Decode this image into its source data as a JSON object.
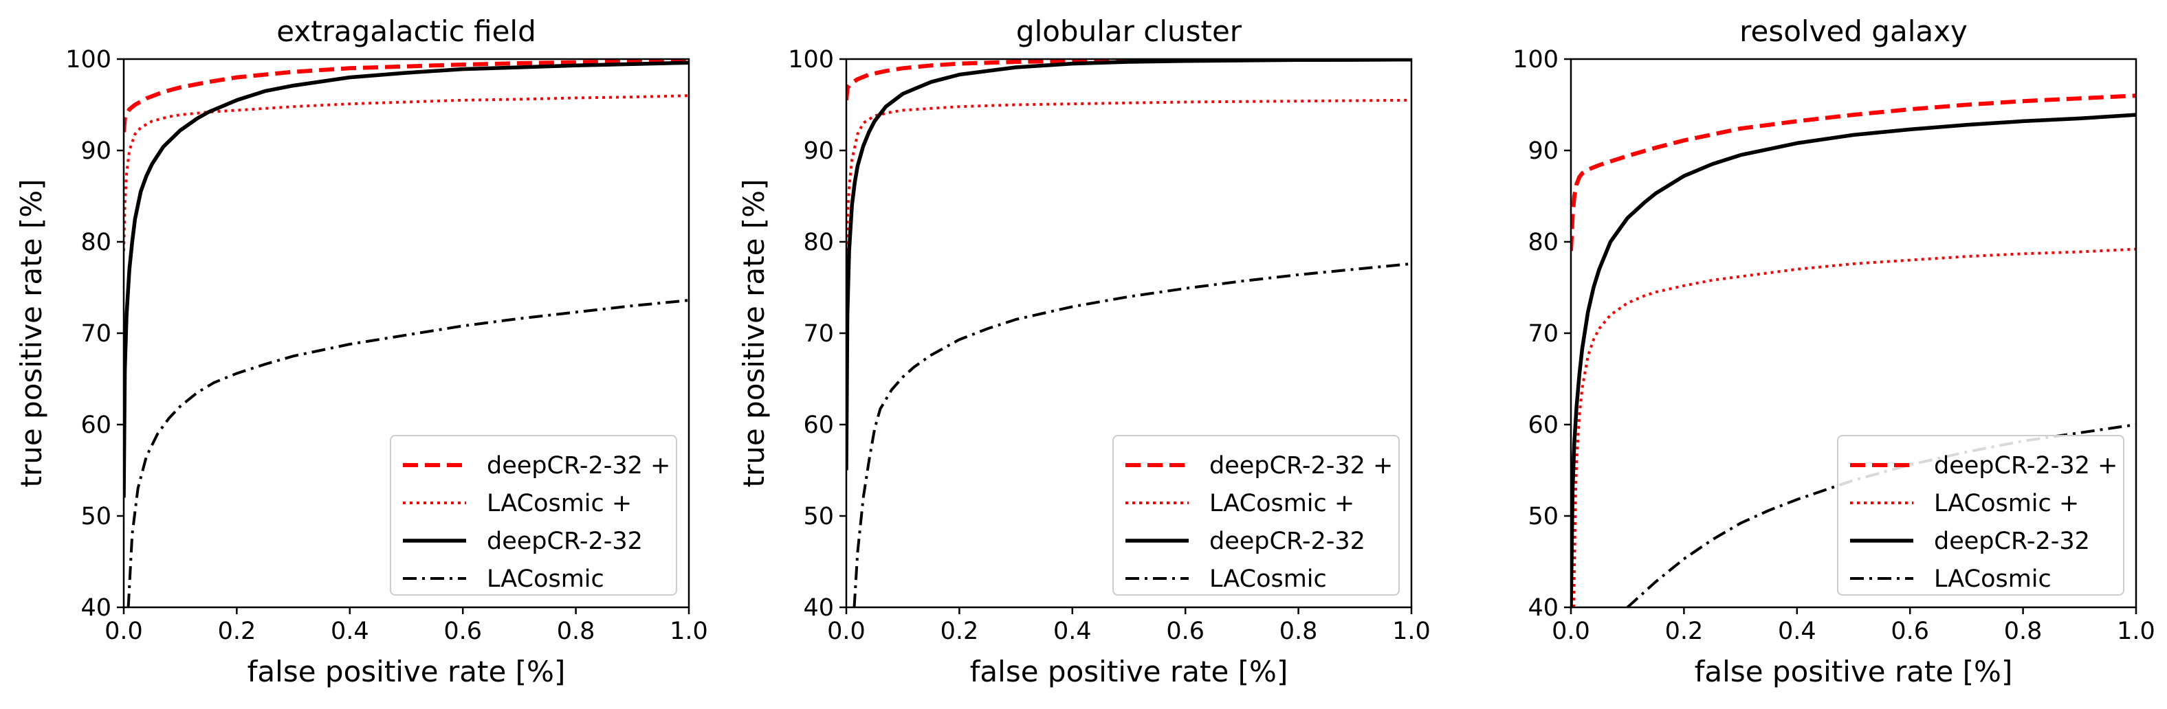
{
  "chart_data": [
    {
      "type": "line",
      "title": "extragalactic field",
      "xlabel": "false positive rate [%]",
      "ylabel": "true positive rate [%]",
      "xlim": [
        0.0,
        1.0
      ],
      "ylim": [
        40,
        100
      ],
      "xticks": [
        "0.0",
        "0.2",
        "0.4",
        "0.6",
        "0.8",
        "1.0"
      ],
      "yticks": [
        "40",
        "50",
        "60",
        "70",
        "80",
        "90",
        "100"
      ],
      "legend_position": "lower-right",
      "series": [
        {
          "name": "deepCR-2-32 +",
          "color": "#ff0000",
          "style": "dashed",
          "x": [
            0,
            0.002,
            0.005,
            0.01,
            0.02,
            0.04,
            0.07,
            0.1,
            0.15,
            0.2,
            0.3,
            0.4,
            0.5,
            0.6,
            0.7,
            0.8,
            0.9,
            1.0
          ],
          "y": [
            92,
            93.5,
            94.0,
            94.5,
            95.0,
            95.7,
            96.4,
            96.9,
            97.5,
            98.0,
            98.6,
            99.0,
            99.2,
            99.4,
            99.55,
            99.65,
            99.75,
            99.85
          ]
        },
        {
          "name": "LACosmic +",
          "color": "#ff0000",
          "style": "dotted",
          "x": [
            0,
            0.002,
            0.005,
            0.01,
            0.02,
            0.03,
            0.05,
            0.08,
            0.1,
            0.15,
            0.2,
            0.3,
            0.4,
            0.5,
            0.6,
            0.7,
            0.8,
            0.9,
            1.0
          ],
          "y": [
            79,
            84,
            87.5,
            90,
            91.8,
            92.5,
            93.2,
            93.7,
            93.9,
            94.2,
            94.4,
            94.8,
            95.1,
            95.3,
            95.5,
            95.6,
            95.75,
            95.85,
            96.0
          ]
        },
        {
          "name": "deepCR-2-32",
          "color": "#000000",
          "style": "solid",
          "x": [
            0,
            0.002,
            0.005,
            0.01,
            0.015,
            0.02,
            0.03,
            0.04,
            0.05,
            0.07,
            0.1,
            0.13,
            0.15,
            0.2,
            0.25,
            0.3,
            0.4,
            0.5,
            0.6,
            0.7,
            0.8,
            0.9,
            1.0
          ],
          "y": [
            52,
            66,
            72,
            77,
            80,
            82.5,
            85.5,
            87.2,
            88.5,
            90.4,
            92.2,
            93.5,
            94.2,
            95.5,
            96.5,
            97.1,
            98.0,
            98.5,
            98.9,
            99.1,
            99.3,
            99.45,
            99.6
          ]
        },
        {
          "name": "LACosmic",
          "color": "#000000",
          "style": "dashdot",
          "x": [
            0.008,
            0.015,
            0.025,
            0.04,
            0.06,
            0.08,
            0.1,
            0.13,
            0.16,
            0.2,
            0.25,
            0.3,
            0.4,
            0.5,
            0.6,
            0.7,
            0.8,
            0.9,
            1.0
          ],
          "y": [
            40,
            48,
            53,
            56.5,
            59,
            60.7,
            62,
            63.5,
            64.6,
            65.6,
            66.6,
            67.5,
            68.8,
            69.8,
            70.8,
            71.6,
            72.3,
            73.0,
            73.6
          ]
        }
      ]
    },
    {
      "type": "line",
      "title": "globular cluster",
      "xlabel": "false positive rate [%]",
      "ylabel": "true positive rate [%]",
      "xlim": [
        0.0,
        1.0
      ],
      "ylim": [
        40,
        100
      ],
      "xticks": [
        "0.0",
        "0.2",
        "0.4",
        "0.6",
        "0.8",
        "1.0"
      ],
      "yticks": [
        "40",
        "50",
        "60",
        "70",
        "80",
        "90",
        "100"
      ],
      "legend_position": "lower-right",
      "series": [
        {
          "name": "deepCR-2-32 +",
          "color": "#ff0000",
          "style": "dashed",
          "x": [
            0,
            0.002,
            0.005,
            0.01,
            0.02,
            0.04,
            0.07,
            0.1,
            0.15,
            0.2,
            0.3,
            0.4,
            0.5,
            0.6,
            0.7,
            0.8,
            0.9,
            1.0
          ],
          "y": [
            95.5,
            96.8,
            97.1,
            97.4,
            97.8,
            98.3,
            98.7,
            99.0,
            99.3,
            99.5,
            99.7,
            99.8,
            99.85,
            99.9,
            99.92,
            99.94,
            99.96,
            99.97
          ]
        },
        {
          "name": "LACosmic +",
          "color": "#ff0000",
          "style": "dotted",
          "x": [
            0,
            0.002,
            0.005,
            0.01,
            0.02,
            0.03,
            0.05,
            0.08,
            0.1,
            0.15,
            0.2,
            0.3,
            0.4,
            0.5,
            0.6,
            0.7,
            0.8,
            0.9,
            1.0
          ],
          "y": [
            76,
            82,
            86,
            89,
            91.8,
            93,
            93.8,
            94.2,
            94.4,
            94.6,
            94.8,
            95.0,
            95.1,
            95.2,
            95.3,
            95.35,
            95.4,
            95.45,
            95.5
          ]
        },
        {
          "name": "deepCR-2-32",
          "color": "#000000",
          "style": "solid",
          "x": [
            0,
            0.002,
            0.005,
            0.01,
            0.015,
            0.02,
            0.03,
            0.04,
            0.05,
            0.07,
            0.1,
            0.15,
            0.2,
            0.3,
            0.4,
            0.5,
            0.6,
            0.7,
            0.8,
            0.9,
            1.0
          ],
          "y": [
            55,
            72,
            79,
            84,
            86.5,
            88.3,
            90.5,
            92,
            93.2,
            94.8,
            96.2,
            97.5,
            98.3,
            99.1,
            99.5,
            99.7,
            99.8,
            99.85,
            99.9,
            99.92,
            99.95
          ]
        },
        {
          "name": "LACosmic",
          "color": "#000000",
          "style": "dashdot",
          "x": [
            0.014,
            0.02,
            0.03,
            0.04,
            0.05,
            0.06,
            0.08,
            0.1,
            0.12,
            0.15,
            0.2,
            0.25,
            0.3,
            0.4,
            0.5,
            0.6,
            0.7,
            0.8,
            0.9,
            1.0
          ],
          "y": [
            40,
            46,
            52,
            56,
            59.5,
            61.7,
            63.8,
            65.2,
            66.3,
            67.6,
            69.3,
            70.5,
            71.5,
            72.9,
            74.0,
            74.9,
            75.7,
            76.4,
            77.0,
            77.6
          ]
        }
      ]
    },
    {
      "type": "line",
      "title": "resolved galaxy",
      "xlabel": "false positive rate [%]",
      "ylabel": "",
      "xlim": [
        0.0,
        1.0
      ],
      "ylim": [
        40,
        100
      ],
      "xticks": [
        "0.0",
        "0.2",
        "0.4",
        "0.6",
        "0.8",
        "1.0"
      ],
      "yticks": [
        "40",
        "50",
        "60",
        "70",
        "80",
        "90",
        "100"
      ],
      "legend_position": "lower-right",
      "series": [
        {
          "name": "deepCR-2-32 +",
          "color": "#ff0000",
          "style": "dashed",
          "x": [
            0,
            0.003,
            0.006,
            0.01,
            0.015,
            0.02,
            0.03,
            0.05,
            0.08,
            0.1,
            0.15,
            0.2,
            0.3,
            0.4,
            0.5,
            0.6,
            0.7,
            0.8,
            0.9,
            1.0
          ],
          "y": [
            79,
            83,
            85,
            86.3,
            87.1,
            87.5,
            87.9,
            88.4,
            89.0,
            89.4,
            90.3,
            91.1,
            92.4,
            93.2,
            93.9,
            94.5,
            95.0,
            95.4,
            95.7,
            96.0
          ]
        },
        {
          "name": "LACosmic +",
          "color": "#ff0000",
          "style": "dotted",
          "x": [
            0.005,
            0.008,
            0.01,
            0.015,
            0.02,
            0.03,
            0.04,
            0.05,
            0.07,
            0.1,
            0.13,
            0.15,
            0.2,
            0.25,
            0.3,
            0.4,
            0.5,
            0.6,
            0.7,
            0.8,
            0.9,
            1.0
          ],
          "y": [
            40,
            52,
            56,
            61,
            64,
            67.5,
            69.3,
            70.5,
            72.0,
            73.3,
            74.1,
            74.5,
            75.2,
            75.8,
            76.2,
            77.0,
            77.6,
            78.0,
            78.4,
            78.7,
            78.9,
            79.2
          ]
        },
        {
          "name": "deepCR-2-32",
          "color": "#000000",
          "style": "solid",
          "x": [
            0,
            0.003,
            0.006,
            0.01,
            0.015,
            0.02,
            0.03,
            0.04,
            0.05,
            0.07,
            0.1,
            0.13,
            0.15,
            0.2,
            0.25,
            0.3,
            0.4,
            0.5,
            0.6,
            0.7,
            0.8,
            0.9,
            1.0
          ],
          "y": [
            40,
            53,
            58,
            62,
            65.5,
            68.3,
            72.3,
            75.0,
            77.0,
            80.0,
            82.6,
            84.3,
            85.3,
            87.2,
            88.5,
            89.5,
            90.8,
            91.7,
            92.3,
            92.8,
            93.2,
            93.5,
            93.9
          ]
        },
        {
          "name": "LACosmic",
          "color": "#000000",
          "style": "dashdot",
          "x": [
            0.1,
            0.15,
            0.2,
            0.25,
            0.3,
            0.35,
            0.4,
            0.5,
            0.6,
            0.7,
            0.8,
            0.9,
            1.0
          ],
          "y": [
            40,
            42.8,
            45.3,
            47.4,
            49.2,
            50.6,
            51.8,
            53.9,
            55.6,
            57.0,
            58.2,
            59.1,
            60.0
          ]
        }
      ]
    }
  ]
}
